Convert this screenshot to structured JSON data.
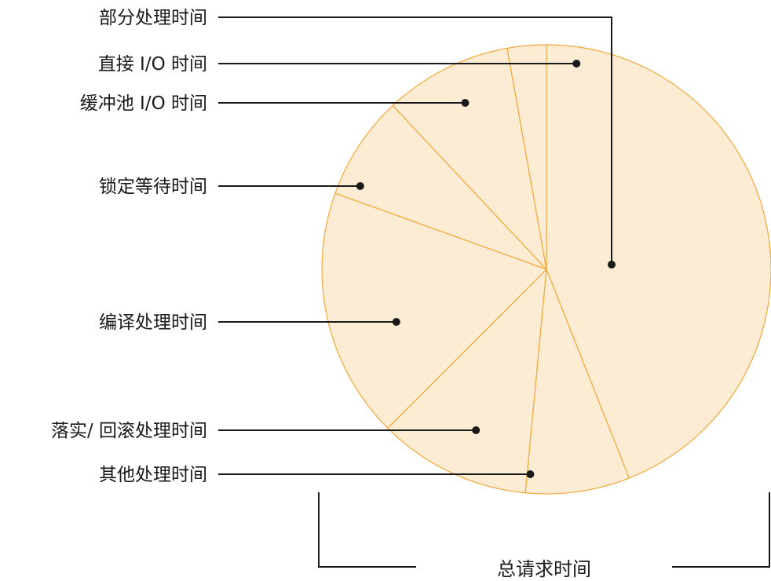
{
  "chart_data": {
    "type": "pie",
    "slices": [
      {
        "label": "部分处理时间",
        "value": 44.0
      },
      {
        "label": "直接 I/O 时间",
        "value": 7.5
      },
      {
        "label": "缓冲池 I/O 时间",
        "value": 11.0
      },
      {
        "label": "锁定等待时间",
        "value": 18.0
      },
      {
        "label": "编译处理时间",
        "value": 7.5
      },
      {
        "label": "落实/ 回滚处理时间",
        "value": 9.2
      },
      {
        "label": "其他处理时间",
        "value": 2.8
      }
    ],
    "colors": {
      "slice_fill": "#fbecd3",
      "slice_stroke": "#f2a93b",
      "leader_line": "#1a1a1a"
    }
  },
  "labels": {
    "total": "总请求时间"
  }
}
